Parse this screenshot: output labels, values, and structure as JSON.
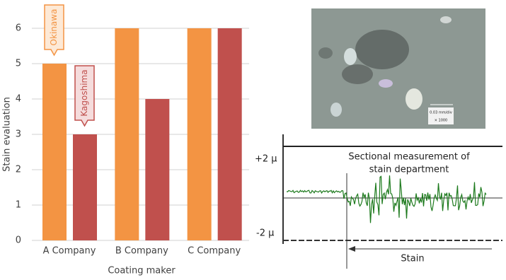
{
  "chart_data": {
    "type": "bar",
    "x_label": "Coating maker",
    "y_label": "Stain evaluation",
    "categories": [
      "A Company",
      "B Company",
      "C Company"
    ],
    "series": [
      {
        "name": "Okinawa",
        "color": "#f39443",
        "values": [
          5,
          6,
          6
        ]
      },
      {
        "name": "Kagoshima",
        "color": "#c0504d",
        "values": [
          3,
          4,
          6
        ]
      }
    ],
    "ylim": [
      0,
      6
    ],
    "yticks": [
      0,
      1,
      2,
      3,
      4,
      5,
      6
    ],
    "grid": true
  },
  "micrograph": {
    "scale_label": "0.03 mm/div",
    "magnification": "× 1000"
  },
  "profile": {
    "upper_label": "+2 μ",
    "lower_label": "-2 μ",
    "title_lines": [
      "Sectional measurement of",
      "stain department"
    ],
    "stain_label": "Stain"
  }
}
